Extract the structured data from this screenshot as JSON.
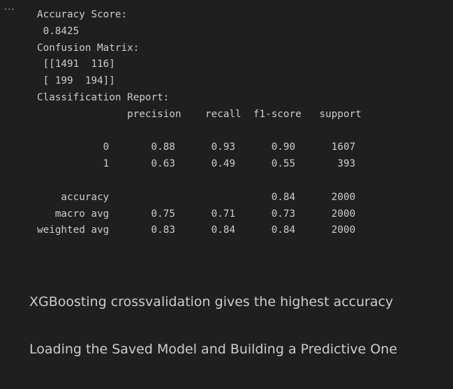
{
  "output": {
    "more_icon": "more-horizontal-icon",
    "more_glyph": "···",
    "lines": [
      "Accuracy Score:",
      " 0.8425",
      "Confusion Matrix:",
      " [[1491  116]",
      " [ 199  194]]",
      "Classification Report:",
      "               precision    recall  f1-score   support",
      "",
      "           0       0.88      0.93      0.90      1607",
      "           1       0.63      0.49      0.55       393",
      "",
      "    accuracy                           0.84      2000",
      "   macro avg       0.75      0.71      0.73      2000",
      "weighted avg       0.83      0.84      0.84      2000"
    ]
  },
  "markdown": {
    "line1": "XGBoosting crossvalidation gives the highest accuracy",
    "line2": "Loading the Saved Model and Building a Predictive One"
  }
}
